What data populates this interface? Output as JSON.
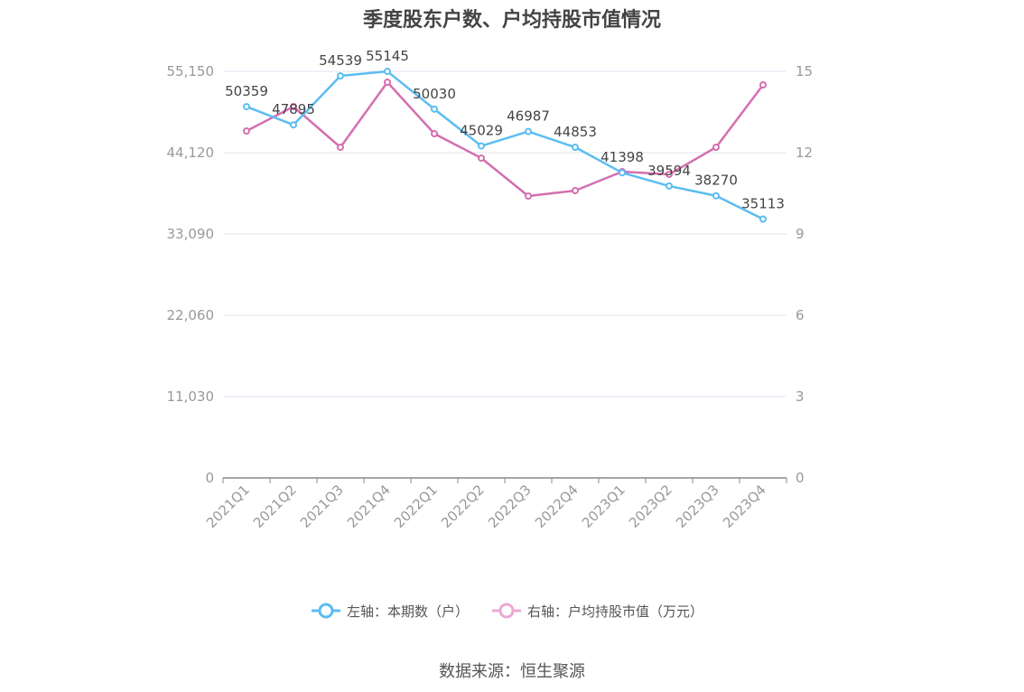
{
  "title": "季度股东户数、户均持股市值情况",
  "source": "数据来源：恒生聚源",
  "colors": {
    "left_series": "#5bbdf0",
    "right_series": "#d46fb0",
    "right_series_legend": "#eba9d3",
    "axis_text": "#999999",
    "grid": "#e3e6f0",
    "label_text": "#444444"
  },
  "chart_data": {
    "type": "line",
    "title": "季度股东户数、户均持股市值情况",
    "categories": [
      "2021Q1",
      "2021Q2",
      "2021Q3",
      "2021Q4",
      "2022Q1",
      "2022Q2",
      "2022Q3",
      "2022Q4",
      "2023Q1",
      "2023Q2",
      "2023Q3",
      "2023Q4"
    ],
    "y_left": {
      "ylim": [
        0,
        55150
      ],
      "ticks": [
        "0",
        "11,030",
        "22,060",
        "33,090",
        "44,120",
        "55,150"
      ]
    },
    "y_right": {
      "ylim": [
        0,
        15
      ],
      "ticks": [
        "0",
        "3",
        "6",
        "9",
        "12",
        "15"
      ]
    },
    "grid": true,
    "legend_position": "bottom",
    "series": [
      {
        "name": "左轴：本期数（户）",
        "axis": "left",
        "values": [
          50359,
          47895,
          54539,
          55145,
          50030,
          45029,
          46987,
          44853,
          41398,
          39594,
          38270,
          35113
        ],
        "labels": [
          "50359",
          "47895",
          "54539",
          "55145",
          "50030",
          "45029",
          "46987",
          "44853",
          "41398",
          "39594",
          "38270",
          "35113"
        ]
      },
      {
        "name": "右轴：户均持股市值（万元）",
        "axis": "right",
        "values": [
          12.8,
          13.7,
          12.2,
          14.6,
          12.7,
          11.8,
          10.4,
          10.6,
          11.3,
          11.2,
          12.2,
          14.5
        ]
      }
    ]
  }
}
